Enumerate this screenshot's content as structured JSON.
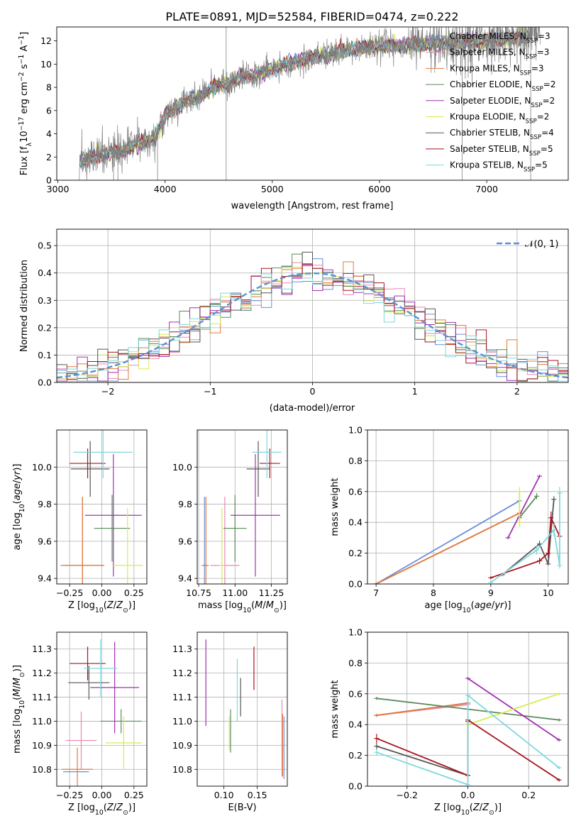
{
  "figure_title": "PLATE=0891, MJD=52584, FIBERID=0474, z=0.222",
  "colors": {
    "Chabrier MILES": "#6a8fd8",
    "Salpeter MILES": "#e889b3",
    "Kroupa MILES": "#e07b39",
    "Chabrier ELODIE": "#5a8a5a",
    "Salpeter ELODIE": "#a030b0",
    "Kroupa ELODIE": "#d4ed50",
    "Chabrier STELIB": "#555555",
    "Salpeter STELIB": "#a8141e",
    "Kroupa STELIB": "#7fd8de",
    "gaussian": "#5b8fd8",
    "spectrum": "#808080"
  },
  "chart_data": [
    {
      "id": "spectrum",
      "type": "line",
      "xlabel": "wavelength [Angstrom, rest frame]",
      "ylabel": "Flux [f_λ10^-17 erg cm^-2 s^-1 A^-1]",
      "xlim": [
        2990,
        7760
      ],
      "ylim": [
        0,
        13.2
      ],
      "xticks": [
        "3000",
        "4000",
        "5000",
        "6000",
        "7000"
      ],
      "yticks": [
        "0",
        "2",
        "4",
        "6",
        "8",
        "10",
        "12"
      ],
      "grid": false,
      "legend_position": "top-right",
      "legend": [
        {
          "base": "Chabrier MILES, N",
          "sub": "SSP",
          "tail": "=3"
        },
        {
          "base": "Salpeter MILES, N",
          "sub": "SSP",
          "tail": "=3"
        },
        {
          "base": "Kroupa MILES, N",
          "sub": "SSP",
          "tail": "=3"
        },
        {
          "base": "Chabrier ELODIE, N",
          "sub": "SSP",
          "tail": "=2"
        },
        {
          "base": "Salpeter ELODIE, N",
          "sub": "SSP",
          "tail": "=2"
        },
        {
          "base": "Kroupa ELODIE, N",
          "sub": "SSP",
          "tail": "=2"
        },
        {
          "base": "Chabrier STELIB, N",
          "sub": "SSP",
          "tail": "=4"
        },
        {
          "base": "Salpeter STELIB, N",
          "sub": "SSP",
          "tail": "=5"
        },
        {
          "base": "Kroupa STELIB, N",
          "sub": "SSP",
          "tail": "=5"
        }
      ],
      "continuum_x": [
        3200,
        3300,
        3400,
        3500,
        3600,
        3700,
        3800,
        3900,
        4000,
        4100,
        4200,
        4300,
        4400,
        4500,
        4600,
        4700,
        4800,
        4900,
        5000,
        5100,
        5200,
        5400,
        5600,
        5800,
        6000,
        6200,
        6400,
        6600,
        6800,
        7000,
        7200,
        7400
      ],
      "continuum_y": [
        1.5,
        2.0,
        2.2,
        2.3,
        2.4,
        3.0,
        3.3,
        3.6,
        5.5,
        6.3,
        6.8,
        7.1,
        7.7,
        8.2,
        8.4,
        8.9,
        9.0,
        9.3,
        9.6,
        9.9,
        10.2,
        10.6,
        11.0,
        11.4,
        11.5,
        11.6,
        11.7,
        11.8,
        11.9,
        12.0,
        12.2,
        12.6
      ]
    },
    {
      "id": "residuals",
      "type": "histogram",
      "xlabel": "(data-model)/error",
      "ylabel": "Normed distribution",
      "xlim": [
        -2.5,
        2.5
      ],
      "ylim": [
        0,
        0.56
      ],
      "xticks": [
        "−2",
        "−1",
        "0",
        "1",
        "2"
      ],
      "yticks": [
        "0.0",
        "0.1",
        "0.2",
        "0.3",
        "0.4",
        "0.5"
      ],
      "grid": true,
      "legend_position": "top-right",
      "legend_label": "𝒩(0, 1)",
      "bin_width": 0.1,
      "reference_curve": "gaussian N(0,1)"
    },
    {
      "id": "age_vs_Z",
      "type": "errorbar",
      "xlabel": "Z [log10(Z/Z⊙)]",
      "ylabel": "age [log10(age/yr)]",
      "xlim": [
        -0.35,
        0.35
      ],
      "ylim": [
        9.37,
        10.2
      ],
      "xticks": [
        "−0.25",
        "0.00",
        "0.25"
      ],
      "yticks": [
        "9.4",
        "9.6",
        "9.8",
        "10.0"
      ],
      "grid": true,
      "points": [
        {
          "model": "Chabrier MILES",
          "x": -0.14,
          "xerr": 0.15,
          "y": 9.47,
          "yerr": 0
        },
        {
          "model": "Salpeter MILES",
          "x": -0.15,
          "xerr": 0.16,
          "y": 9.47,
          "yerr": 0.37
        },
        {
          "model": "Kroupa MILES",
          "x": -0.15,
          "xerr": 0.17,
          "y": 9.47,
          "yerr": 0.37
        },
        {
          "model": "Chabrier ELODIE",
          "x": 0.08,
          "xerr": 0.14,
          "y": 9.67,
          "yerr": 0.18
        },
        {
          "model": "Salpeter ELODIE",
          "x": 0.09,
          "xerr": 0.22,
          "y": 9.74,
          "yerr": 0.33
        },
        {
          "model": "Kroupa ELODIE",
          "x": 0.2,
          "xerr": 0.12,
          "y": 9.47,
          "yerr": 0.31
        },
        {
          "model": "Chabrier STELIB",
          "x": -0.09,
          "xerr": 0.15,
          "y": 9.99,
          "yerr": 0.15
        },
        {
          "model": "Salpeter STELIB",
          "x": -0.11,
          "xerr": 0.14,
          "y": 10.02,
          "yerr": 0.08
        },
        {
          "model": "Kroupa STELIB",
          "x": 0.01,
          "xerr": 0.23,
          "y": 10.08,
          "yerr": 0.14
        }
      ]
    },
    {
      "id": "age_vs_mass",
      "type": "errorbar",
      "xlabel": "mass [log10(M/M⊙)]",
      "ylabel": "",
      "xlim": [
        10.74,
        11.36
      ],
      "ylim": [
        9.37,
        10.2
      ],
      "xticks": [
        "10.75",
        "11.00",
        "11.25"
      ],
      "yticks": [
        "9.4",
        "9.6",
        "9.8",
        "10.0"
      ],
      "grid": true,
      "points": [
        {
          "model": "Chabrier MILES",
          "x": 10.79,
          "xerr": 0.02,
          "y": 9.47,
          "yerr": 0.37
        },
        {
          "model": "Salpeter MILES",
          "x": 10.93,
          "xerr": 0.1,
          "y": 9.47,
          "yerr": 0.37
        },
        {
          "model": "Kroupa MILES",
          "x": 10.8,
          "xerr": 0.02,
          "y": 9.47,
          "yerr": 0.37
        },
        {
          "model": "Chabrier ELODIE",
          "x": 11.0,
          "xerr": 0.08,
          "y": 9.67,
          "yerr": 0.18
        },
        {
          "model": "Salpeter ELODIE",
          "x": 11.14,
          "xerr": 0.17,
          "y": 9.74,
          "yerr": 0.33
        },
        {
          "model": "Kroupa ELODIE",
          "x": 10.91,
          "xerr": 0.02,
          "y": 9.47,
          "yerr": 0.31
        },
        {
          "model": "Chabrier STELIB",
          "x": 11.16,
          "xerr": 0.08,
          "y": 9.99,
          "yerr": 0.15
        },
        {
          "model": "Salpeter STELIB",
          "x": 11.24,
          "xerr": 0.07,
          "y": 10.02,
          "yerr": 0.08
        },
        {
          "model": "Kroupa STELIB",
          "x": 11.22,
          "xerr": 0.1,
          "y": 10.08,
          "yerr": 0.14
        }
      ]
    },
    {
      "id": "weight_vs_age",
      "type": "line",
      "xlabel": "age [log10(age/yr)]",
      "ylabel": "mass weight",
      "xlim": [
        6.85,
        10.35
      ],
      "ylim": [
        0,
        1.0
      ],
      "xticks": [
        "7",
        "8",
        "9",
        "10"
      ],
      "yticks": [
        "0.0",
        "0.2",
        "0.4",
        "0.6",
        "0.8",
        "1.0"
      ],
      "grid": true,
      "series": [
        {
          "model": "Chabrier MILES",
          "x": [
            7.0,
            9.5
          ],
          "y": [
            0.0,
            0.54
          ],
          "err": [
            0,
            0
          ]
        },
        {
          "model": "Salpeter MILES",
          "x": [
            7.0,
            9.5
          ],
          "y": [
            0.0,
            0.46
          ],
          "err": [
            0,
            0
          ]
        },
        {
          "model": "Kroupa MILES",
          "x": [
            7.0,
            9.5
          ],
          "y": [
            0.0,
            0.46
          ],
          "err": [
            0,
            0
          ]
        },
        {
          "model": "Chabrier ELODIE",
          "x": [
            9.5,
            9.8
          ],
          "y": [
            0.43,
            0.57
          ],
          "err": [
            0.02,
            0.02
          ]
        },
        {
          "model": "Salpeter ELODIE",
          "x": [
            9.3,
            9.85
          ],
          "y": [
            0.3,
            0.7
          ],
          "err": [
            0,
            0
          ]
        },
        {
          "model": "Kroupa ELODIE",
          "x": [
            9.5,
            9.5
          ],
          "y": [
            0.4,
            0.6
          ],
          "err": [
            0.03,
            0.03
          ]
        },
        {
          "model": "Chabrier STELIB",
          "x": [
            9.2,
            9.85,
            10.0,
            10.1
          ],
          "y": [
            0.06,
            0.26,
            0.13,
            0.55
          ],
          "err": [
            0.01,
            0.02,
            0.01,
            0.02
          ]
        },
        {
          "model": "Salpeter STELIB",
          "x": [
            9.0,
            9.85,
            10.0,
            10.05,
            10.2
          ],
          "y": [
            0.04,
            0.15,
            0.2,
            0.43,
            0.31
          ],
          "err": [
            0.01,
            0.02,
            0.03,
            0.04,
            0.02
          ]
        },
        {
          "model": "Kroupa STELIB",
          "x": [
            9.0,
            9.8,
            10.1,
            10.2,
            10.2
          ],
          "y": [
            0.01,
            0.22,
            0.35,
            0.12,
            0.59
          ],
          "err": [
            0.01,
            0.03,
            0.04,
            0.02,
            0.04
          ]
        }
      ]
    },
    {
      "id": "mass_vs_Z",
      "type": "errorbar",
      "xlabel": "Z [log10(Z/Z⊙)]",
      "ylabel": "mass [log10(M/M⊙)]",
      "xlim": [
        -0.35,
        0.35
      ],
      "ylim": [
        10.73,
        11.37
      ],
      "xticks": [
        "−0.25",
        "0.00",
        "0.25"
      ],
      "yticks": [
        "10.8",
        "10.9",
        "11.0",
        "11.1",
        "11.2",
        "11.3"
      ],
      "grid": true,
      "points": [
        {
          "model": "Chabrier MILES",
          "x": -0.2,
          "xerr": 0.1,
          "y": 10.79,
          "yerr": 0.0
        },
        {
          "model": "Salpeter MILES",
          "x": -0.16,
          "xerr": 0.12,
          "y": 10.92,
          "yerr": 0.12
        },
        {
          "model": "Kroupa MILES",
          "x": -0.19,
          "xerr": 0.12,
          "y": 10.8,
          "yerr": 0.09
        },
        {
          "model": "Chabrier ELODIE",
          "x": 0.15,
          "xerr": 0.16,
          "y": 11.0,
          "yerr": 0.05
        },
        {
          "model": "Salpeter ELODIE",
          "x": 0.1,
          "xerr": 0.19,
          "y": 11.14,
          "yerr": 0.19
        },
        {
          "model": "Kroupa ELODIE",
          "x": 0.17,
          "xerr": 0.14,
          "y": 10.91,
          "yerr": 0.11
        },
        {
          "model": "Chabrier STELIB",
          "x": -0.1,
          "xerr": 0.16,
          "y": 11.16,
          "yerr": 0.07
        },
        {
          "model": "Salpeter STELIB",
          "x": -0.11,
          "xerr": 0.14,
          "y": 11.24,
          "yerr": 0.07
        },
        {
          "model": "Kroupa STELIB",
          "x": -0.01,
          "xerr": 0.13,
          "y": 11.22,
          "yerr": 0.12
        }
      ]
    },
    {
      "id": "mass_vs_ebv",
      "type": "errorbar",
      "xlabel": "E(B-V)",
      "ylabel": "",
      "xlim": [
        0.06,
        0.195
      ],
      "ylim": [
        10.73,
        11.37
      ],
      "xticks": [
        "0.10",
        "0.15"
      ],
      "yticks": [
        "10.8",
        "10.9",
        "11.0",
        "11.1",
        "11.2",
        "11.3"
      ],
      "grid": true,
      "points": [
        {
          "model": "Chabrier MILES",
          "x": 0.19,
          "xerr": 0,
          "y": 10.89,
          "yerr": 0.13
        },
        {
          "model": "Salpeter MILES",
          "x": 0.187,
          "xerr": 0,
          "y": 10.93,
          "yerr": 0.16
        },
        {
          "model": "Kroupa MILES",
          "x": 0.188,
          "xerr": 0,
          "y": 10.9,
          "yerr": 0.13
        },
        {
          "model": "Chabrier ELODIE",
          "x": 0.11,
          "xerr": 0,
          "y": 10.96,
          "yerr": 0.09
        },
        {
          "model": "Salpeter ELODIE",
          "x": 0.073,
          "xerr": 0,
          "y": 11.16,
          "yerr": 0.18
        },
        {
          "model": "Kroupa ELODIE",
          "x": 0.108,
          "xerr": 0,
          "y": 10.95,
          "yerr": 0.07
        },
        {
          "model": "Chabrier STELIB",
          "x": 0.125,
          "xerr": 0,
          "y": 11.1,
          "yerr": 0.08
        },
        {
          "model": "Salpeter STELIB",
          "x": 0.145,
          "xerr": 0,
          "y": 11.22,
          "yerr": 0.09
        },
        {
          "model": "Kroupa STELIB",
          "x": 0.12,
          "xerr": 0,
          "y": 11.13,
          "yerr": 0.13
        }
      ]
    },
    {
      "id": "weight_vs_Z",
      "type": "line",
      "xlabel": "Z [log10(Z/Z⊙)]",
      "ylabel": "mass weight",
      "xlim": [
        -0.33,
        0.33
      ],
      "ylim": [
        0,
        1.0
      ],
      "xticks": [
        "−0.2",
        "0.0",
        "0.2"
      ],
      "yticks": [
        "0.0",
        "0.2",
        "0.4",
        "0.6",
        "0.8",
        "1.0"
      ],
      "grid": true,
      "series": [
        {
          "model": "Chabrier MILES",
          "x": [
            -0.3,
            0.0
          ],
          "y": [
            0.46,
            0.54
          ],
          "err": [
            0.01,
            0.01
          ]
        },
        {
          "model": "Salpeter MILES",
          "x": [
            -0.3,
            0.0
          ],
          "y": [
            0.46,
            0.53
          ],
          "err": [
            0.01,
            0.01
          ]
        },
        {
          "model": "Kroupa MILES",
          "x": [
            -0.3,
            0.0
          ],
          "y": [
            0.46,
            0.54
          ],
          "err": [
            0.01,
            0.01
          ]
        },
        {
          "model": "Chabrier ELODIE",
          "x": [
            -0.3,
            0.3
          ],
          "y": [
            0.57,
            0.43
          ],
          "err": [
            0.01,
            0.01
          ]
        },
        {
          "model": "Salpeter ELODIE",
          "x": [
            0.0,
            0.3
          ],
          "y": [
            0.7,
            0.3
          ],
          "err": [
            0.01,
            0.01
          ]
        },
        {
          "model": "Kroupa ELODIE",
          "x": [
            0.0,
            0.3
          ],
          "y": [
            0.4,
            0.6
          ],
          "err": [
            0.01,
            0.01
          ]
        },
        {
          "model": "Chabrier STELIB",
          "x": [
            -0.3,
            0.0,
            0.0
          ],
          "y": [
            0.26,
            0.07,
            0.42
          ],
          "err": [
            0.02,
            0.01,
            0.02
          ]
        },
        {
          "model": "Salpeter STELIB",
          "x": [
            -0.3,
            0.0,
            0.0,
            0.3
          ],
          "y": [
            0.31,
            0.07,
            0.43,
            0.04
          ],
          "err": [
            0.03,
            0.01,
            0.03,
            0.01
          ]
        },
        {
          "model": "Kroupa STELIB",
          "x": [
            -0.3,
            0.0,
            0.0,
            0.3
          ],
          "y": [
            0.22,
            0.01,
            0.59,
            0.12
          ],
          "err": [
            0.02,
            0.01,
            0.04,
            0.01
          ]
        }
      ]
    }
  ]
}
